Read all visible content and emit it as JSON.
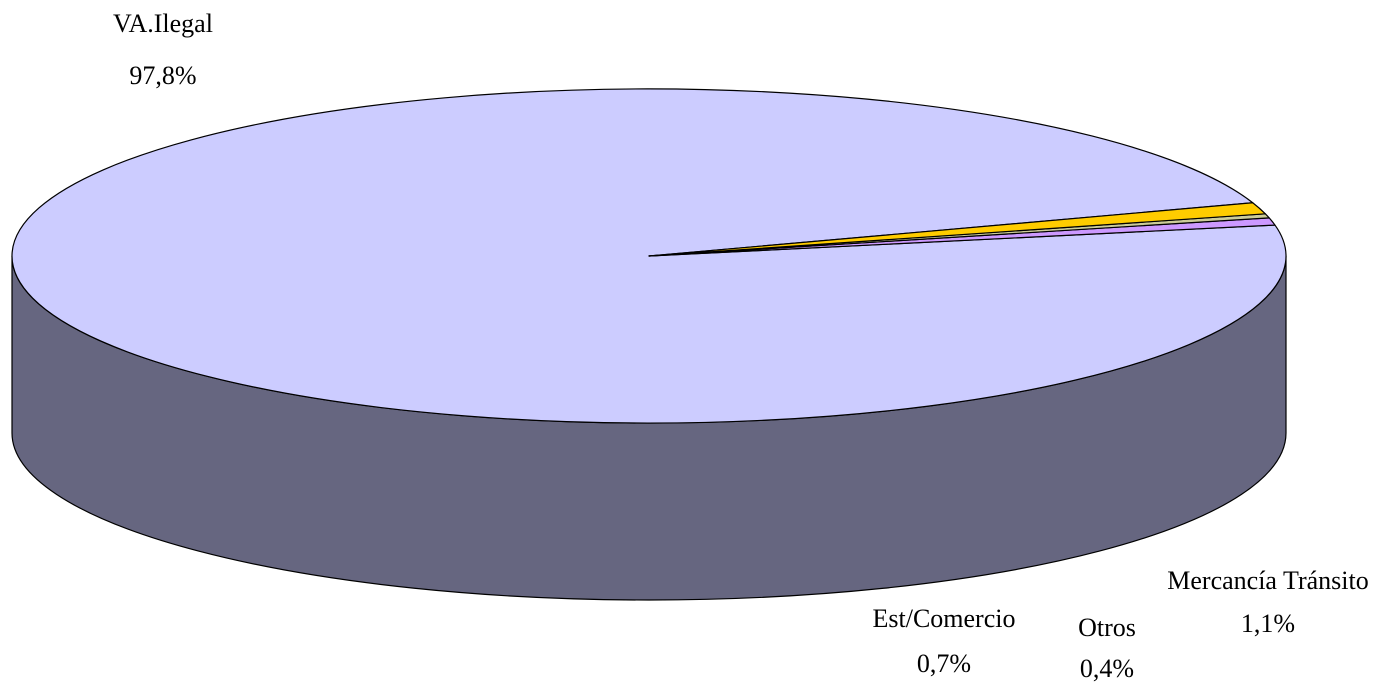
{
  "chart_data": {
    "type": "pie",
    "style": "3d",
    "title": "",
    "start_angle_deg": 18.6,
    "direction": "counterclockwise",
    "slices": [
      {
        "label": "VA.Ilegal",
        "value": 97.8,
        "value_label": "97,8%",
        "top_color": "#CCCCFF",
        "side_color": "#666680"
      },
      {
        "label": "Est/Comercio",
        "value": 0.7,
        "value_label": "0,7%",
        "top_color": "#CC99FF",
        "side_color": "#664C80"
      },
      {
        "label": "Otros",
        "value": 0.4,
        "value_label": "0,4%",
        "top_color": "#CCCC99",
        "side_color": "#66664C"
      },
      {
        "label": "Mercancía Tránsito",
        "value": 1.1,
        "value_label": "1,1%",
        "top_color": "#FFCC00",
        "side_color": "#806600"
      }
    ]
  }
}
